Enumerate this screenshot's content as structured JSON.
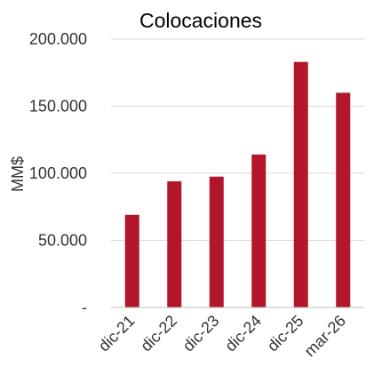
{
  "chart_data": {
    "type": "bar",
    "title": "Colocaciones",
    "ylabel": "MM$",
    "xlabel": "",
    "categories": [
      "dic-21",
      "dic-22",
      "dic-23",
      "dic-24",
      "dic-25",
      "mar-26"
    ],
    "values": [
      69000,
      94000,
      97500,
      114000,
      183000,
      160000
    ],
    "ylim": [
      0,
      200000
    ],
    "yticks": [
      0,
      50000,
      100000,
      150000,
      200000
    ],
    "ytick_labels": [
      "-",
      "50.000",
      "100.000",
      "150.000",
      "200.000"
    ],
    "grid": true,
    "legend": "none",
    "bar_color": "#b3152a"
  }
}
